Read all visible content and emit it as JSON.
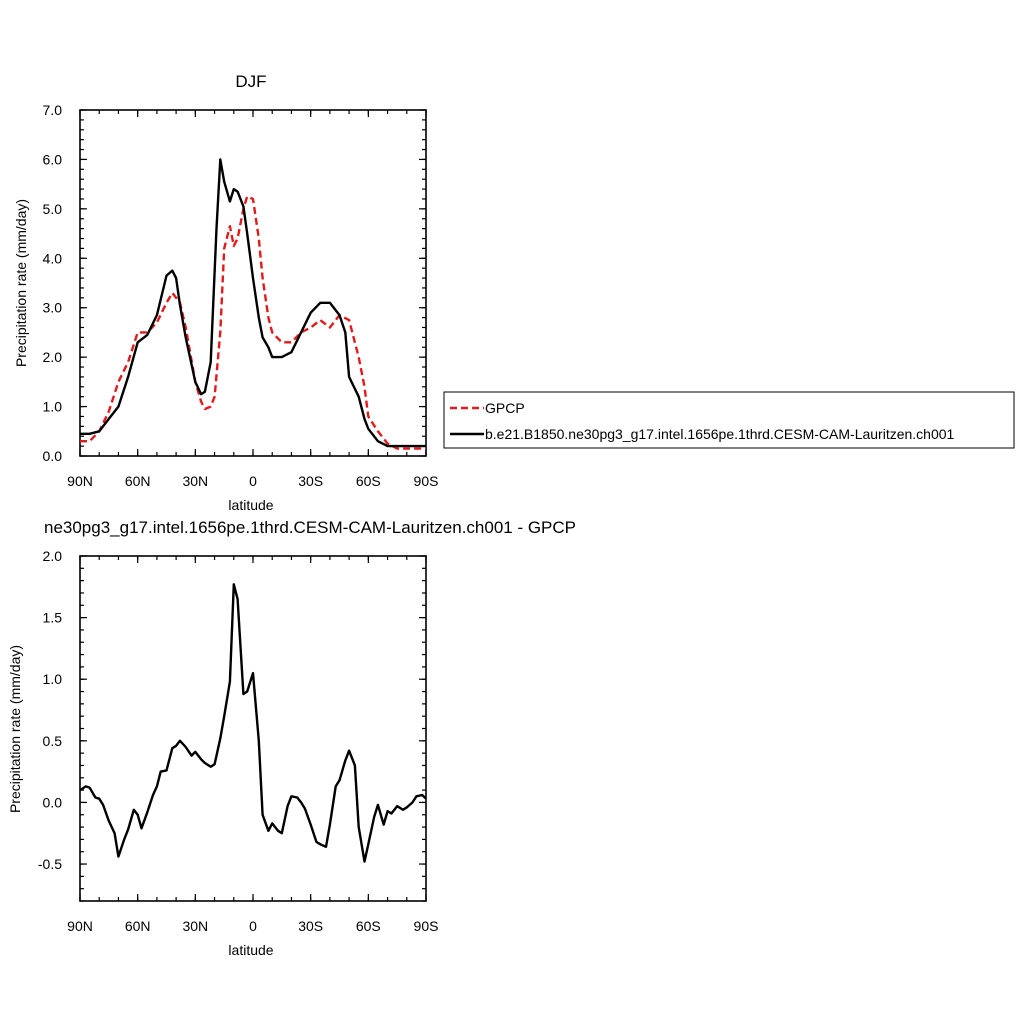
{
  "chart_data": [
    {
      "type": "line",
      "title": "DJF",
      "xlabel": "latitude",
      "ylabel": "Precipitation rate (mm/day)",
      "xlim": [
        90,
        -90
      ],
      "ylim": [
        0,
        7
      ],
      "xticks": [
        90,
        60,
        30,
        0,
        -30,
        -60,
        -90
      ],
      "xtick_labels": [
        "90N",
        "60N",
        "30N",
        "0",
        "30S",
        "60S",
        "90S"
      ],
      "yticks": [
        0,
        1,
        2,
        3,
        4,
        5,
        6,
        7
      ],
      "ytick_labels": [
        "0.0",
        "1.0",
        "2.0",
        "3.0",
        "4.0",
        "5.0",
        "6.0",
        "7.0"
      ],
      "legend": "right",
      "series": [
        {
          "name": "GPCP",
          "color": "#e31a1c",
          "dash": "dashed",
          "x": [
            90,
            85,
            80,
            75,
            70,
            65,
            60,
            55,
            50,
            45,
            42,
            38,
            35,
            30,
            27,
            25,
            22,
            20,
            17,
            15,
            12,
            10,
            8,
            5,
            3,
            0,
            -3,
            -5,
            -8,
            -10,
            -15,
            -20,
            -25,
            -30,
            -35,
            -40,
            -45,
            -50,
            -55,
            -58,
            -60,
            -65,
            -70,
            -75,
            -80,
            -85,
            -90
          ],
          "values": [
            0.3,
            0.3,
            0.5,
            0.9,
            1.5,
            1.9,
            2.5,
            2.5,
            2.7,
            3.1,
            3.3,
            3.1,
            2.6,
            1.5,
            1.1,
            0.95,
            1.0,
            1.2,
            2.5,
            4.2,
            4.65,
            4.25,
            4.4,
            5.0,
            5.25,
            5.2,
            4.4,
            3.6,
            2.8,
            2.5,
            2.3,
            2.3,
            2.5,
            2.6,
            2.75,
            2.6,
            2.85,
            2.75,
            2.0,
            1.4,
            0.8,
            0.5,
            0.25,
            0.15,
            0.15,
            0.15,
            0.15
          ]
        },
        {
          "name": "b.e21.B1850.ne30pg3_g17.intel.1656pe.1thrd.CESM-CAM-Lauritzen.ch001",
          "color": "#000000",
          "dash": "solid",
          "x": [
            90,
            85,
            80,
            75,
            70,
            65,
            60,
            55,
            50,
            45,
            42,
            40,
            38,
            35,
            30,
            27,
            25,
            22,
            19,
            17,
            15,
            12,
            10,
            8,
            5,
            3,
            0,
            -3,
            -5,
            -8,
            -10,
            -15,
            -20,
            -25,
            -30,
            -35,
            -40,
            -45,
            -48,
            -50,
            -55,
            -58,
            -60,
            -65,
            -70,
            -75,
            -80,
            -85,
            -90
          ],
          "values": [
            0.45,
            0.45,
            0.5,
            0.75,
            1.0,
            1.6,
            2.3,
            2.45,
            2.85,
            3.65,
            3.75,
            3.6,
            3.05,
            2.4,
            1.5,
            1.25,
            1.3,
            1.9,
            4.6,
            6.0,
            5.55,
            5.15,
            5.4,
            5.35,
            5.05,
            4.5,
            3.6,
            2.8,
            2.4,
            2.2,
            2.0,
            2.0,
            2.1,
            2.5,
            2.9,
            3.1,
            3.1,
            2.85,
            2.5,
            1.6,
            1.2,
            0.75,
            0.55,
            0.3,
            0.2,
            0.2,
            0.2,
            0.2,
            0.2
          ]
        }
      ]
    },
    {
      "type": "line",
      "title": "ne30pg3_g17.intel.1656pe.1thrd.CESM-CAM-Lauritzen.ch001 - GPCP",
      "xlabel": "latitude",
      "ylabel": "Precipitation rate (mm/day)",
      "xlim": [
        90,
        -90
      ],
      "ylim": [
        -0.8,
        2.0
      ],
      "xticks": [
        90,
        60,
        30,
        0,
        -30,
        -60,
        -90
      ],
      "xtick_labels": [
        "90N",
        "60N",
        "30N",
        "0",
        "30S",
        "60S",
        "90S"
      ],
      "yticks": [
        -0.5,
        0.0,
        0.5,
        1.0,
        1.5,
        2.0
      ],
      "ytick_labels": [
        "-0.5",
        "0.0",
        "0.5",
        "1.0",
        "1.5",
        "2.0"
      ],
      "series": [
        {
          "color": "#000000",
          "dash": "solid",
          "x": [
            90,
            87,
            85,
            82,
            80,
            78,
            75,
            72,
            70,
            67,
            65,
            62,
            60,
            58,
            55,
            52,
            50,
            48,
            45,
            42,
            40,
            38,
            35,
            32,
            30,
            27,
            25,
            22,
            20,
            17,
            15,
            12,
            10,
            8,
            5,
            3,
            0,
            -3,
            -5,
            -8,
            -10,
            -13,
            -15,
            -18,
            -20,
            -23,
            -25,
            -27,
            -30,
            -33,
            -35,
            -38,
            -40,
            -43,
            -45,
            -48,
            -50,
            -53,
            -55,
            -58,
            -60,
            -63,
            -65,
            -68,
            -70,
            -72,
            -75,
            -78,
            -80,
            -83,
            -85,
            -88,
            -90
          ],
          "values": [
            0.1,
            0.13,
            0.12,
            0.04,
            0.03,
            -0.02,
            -0.15,
            -0.25,
            -0.44,
            -0.3,
            -0.22,
            -0.06,
            -0.1,
            -0.21,
            -0.08,
            0.06,
            0.13,
            0.25,
            0.26,
            0.44,
            0.46,
            0.5,
            0.45,
            0.38,
            0.41,
            0.35,
            0.32,
            0.29,
            0.31,
            0.52,
            0.7,
            0.98,
            1.77,
            1.65,
            0.88,
            0.9,
            1.05,
            0.5,
            -0.1,
            -0.23,
            -0.17,
            -0.23,
            -0.25,
            -0.03,
            0.05,
            0.04,
            0.0,
            -0.05,
            -0.18,
            -0.32,
            -0.34,
            -0.36,
            -0.18,
            0.13,
            0.18,
            0.34,
            0.42,
            0.3,
            -0.2,
            -0.48,
            -0.34,
            -0.12,
            -0.02,
            -0.18,
            -0.07,
            -0.09,
            -0.03,
            -0.06,
            -0.04,
            0.0,
            0.05,
            0.06,
            0.03
          ]
        }
      ]
    }
  ]
}
